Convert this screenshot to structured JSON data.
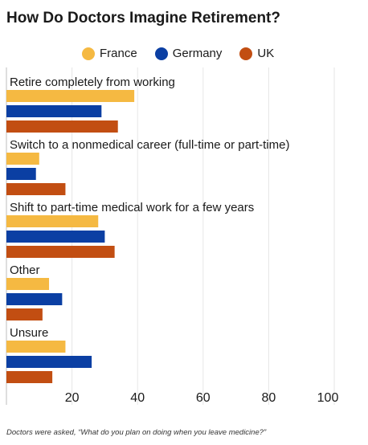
{
  "chart_data": {
    "type": "bar",
    "orientation": "horizontal",
    "title": "How Do Doctors Imagine Retirement?",
    "categories": [
      "Retire completely from working",
      "Switch to a nonmedical career (full-time or part-time)",
      "Shift to part-time medical work for a few years",
      "Other",
      "Unsure"
    ],
    "series": [
      {
        "name": "France",
        "color": "#f5b942",
        "values": [
          39,
          10,
          28,
          13,
          18
        ]
      },
      {
        "name": "Germany",
        "color": "#0b3fa3",
        "values": [
          29,
          9,
          30,
          17,
          26
        ]
      },
      {
        "name": "UK",
        "color": "#c24e12",
        "values": [
          34,
          18,
          33,
          11,
          14
        ]
      }
    ],
    "x_ticks": [
      20,
      40,
      60,
      80,
      100
    ],
    "xlim": [
      0,
      100
    ],
    "grid": true,
    "legend_position": "top-center",
    "footnote": "Doctors were asked, “What do you plan on doing when you leave medicine?”"
  }
}
